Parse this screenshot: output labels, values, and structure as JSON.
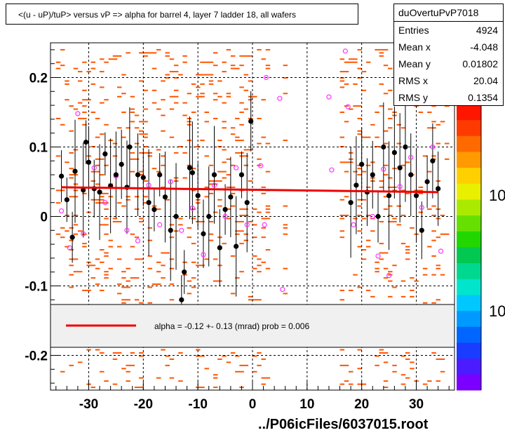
{
  "title": "<(u - uP)/tuP> versus   vP => alpha for barrel 4, layer 7 ladder 18, all wafers",
  "stats": {
    "name": "duOvertuPvP7018",
    "rows": [
      {
        "key": "Entries",
        "value": "4924"
      },
      {
        "key": "Mean x",
        "value": "-4.048"
      },
      {
        "key": "Mean y",
        "value": "0.01802"
      },
      {
        "key": "RMS x",
        "value": "20.04"
      },
      {
        "key": "RMS y",
        "value": "0.1354"
      }
    ]
  },
  "legend": {
    "text": "alpha =   -0.12 +-  0.13 (mrad) prob = 0.006",
    "line_color": "#ee0000"
  },
  "footer": "../P06icFiles/6037015.root",
  "palette_labels": [
    "10",
    "10"
  ],
  "colors": {
    "points": "#000000",
    "open_markers": "#ff33ff",
    "fit_line": "#ee0000",
    "hist_cells": "#ff5500",
    "grid": "#000000"
  },
  "chart_data": {
    "type": "scatter",
    "title": "<(u - uP)/tuP> versus   vP => alpha for barrel 4, layer 7 ladder 18, all wafers",
    "xlim": [
      -37,
      37
    ],
    "ylim": [
      -0.25,
      0.25
    ],
    "x_ticks": [
      -30,
      -20,
      -10,
      0,
      10,
      20,
      30
    ],
    "y_ticks": [
      0.2,
      0.1,
      0,
      -0.1,
      -0.2
    ],
    "x_tick_labels": [
      "-30",
      "-20",
      "-10",
      "0",
      "10",
      "20",
      "30"
    ],
    "y_tick_labels": [
      "0.2",
      "0.1",
      "0",
      "-0.1",
      "-0.2"
    ],
    "grid": true,
    "fit_line": {
      "x_start": -35,
      "y_start": 0.042,
      "x_end": 34,
      "y_end": 0.035
    },
    "profile_points": [
      {
        "x": -35,
        "y": 0.058
      },
      {
        "x": -34,
        "y": 0.024
      },
      {
        "x": -33,
        "y": -0.03
      },
      {
        "x": -32.5,
        "y": 0.065
      },
      {
        "x": -31,
        "y": 0.038
      },
      {
        "x": -30.5,
        "y": 0.107
      },
      {
        "x": -30,
        "y": 0.078
      },
      {
        "x": -29,
        "y": 0.04
      },
      {
        "x": -28,
        "y": 0.035
      },
      {
        "x": -27,
        "y": 0.09
      },
      {
        "x": -26,
        "y": 0.044
      },
      {
        "x": -25,
        "y": 0.06
      },
      {
        "x": -24,
        "y": 0.075
      },
      {
        "x": -23,
        "y": 0.042
      },
      {
        "x": -22.5,
        "y": 0.1
      },
      {
        "x": -21,
        "y": 0.06
      },
      {
        "x": -20,
        "y": 0.056
      },
      {
        "x": -19,
        "y": 0.02
      },
      {
        "x": -18,
        "y": 0.01
      },
      {
        "x": -17,
        "y": 0.06
      },
      {
        "x": -16,
        "y": 0.028
      },
      {
        "x": -15,
        "y": -0.02
      },
      {
        "x": -14,
        "y": 0.0
      },
      {
        "x": -13,
        "y": -0.12
      },
      {
        "x": -12.5,
        "y": -0.08
      },
      {
        "x": -11.5,
        "y": 0.07
      },
      {
        "x": -11,
        "y": 0.063
      },
      {
        "x": -10,
        "y": 0.03
      },
      {
        "x": -9,
        "y": -0.025
      },
      {
        "x": -8,
        "y": 0.0
      },
      {
        "x": -7,
        "y": 0.06
      },
      {
        "x": -6,
        "y": -0.045
      },
      {
        "x": -5,
        "y": 0.01
      },
      {
        "x": -4,
        "y": 0.028
      },
      {
        "x": -3,
        "y": -0.043
      },
      {
        "x": -2,
        "y": 0.06
      },
      {
        "x": -1,
        "y": 0.02
      },
      {
        "x": -0.3,
        "y": 0.137
      },
      {
        "x": 18,
        "y": 0.02
      },
      {
        "x": 19,
        "y": 0.045
      },
      {
        "x": 20,
        "y": 0.075
      },
      {
        "x": 21,
        "y": 0.035
      },
      {
        "x": 22,
        "y": 0.06
      },
      {
        "x": 23,
        "y": 0.0
      },
      {
        "x": 24,
        "y": 0.1
      },
      {
        "x": 25,
        "y": 0.03
      },
      {
        "x": 26,
        "y": 0.092
      },
      {
        "x": 27,
        "y": 0.07
      },
      {
        "x": 28,
        "y": 0.1
      },
      {
        "x": 29,
        "y": 0.06
      },
      {
        "x": 30,
        "y": 0.03
      },
      {
        "x": 31,
        "y": -0.02
      },
      {
        "x": 32,
        "y": 0.05
      },
      {
        "x": 33,
        "y": 0.08
      },
      {
        "x": 34,
        "y": 0.04
      }
    ],
    "open_markers": [
      {
        "x": -35,
        "y": 0.008
      },
      {
        "x": -33.5,
        "y": -0.045
      },
      {
        "x": -32,
        "y": 0.148
      },
      {
        "x": -31,
        "y": -0.025
      },
      {
        "x": -29,
        "y": 0.07
      },
      {
        "x": -27,
        "y": 0.02
      },
      {
        "x": -25,
        "y": 0.058
      },
      {
        "x": -23,
        "y": -0.02
      },
      {
        "x": -21,
        "y": -0.035
      },
      {
        "x": -19,
        "y": 0.045
      },
      {
        "x": -17,
        "y": -0.012
      },
      {
        "x": -15,
        "y": 0.05
      },
      {
        "x": -13,
        "y": -0.02
      },
      {
        "x": -11,
        "y": 0.012
      },
      {
        "x": -9,
        "y": -0.055
      },
      {
        "x": -7,
        "y": 0.045
      },
      {
        "x": -5,
        "y": 0.0
      },
      {
        "x": -3,
        "y": 0.07
      },
      {
        "x": -1,
        "y": -0.012
      },
      {
        "x": 1.5,
        "y": 0.073
      },
      {
        "x": 2.2,
        "y": -0.012
      },
      {
        "x": 2.5,
        "y": 0.2
      },
      {
        "x": 5,
        "y": 0.17
      },
      {
        "x": 5.5,
        "y": -0.105
      },
      {
        "x": 14,
        "y": 0.172
      },
      {
        "x": 14.5,
        "y": 0.067
      },
      {
        "x": 17,
        "y": 0.238
      },
      {
        "x": 17.5,
        "y": 0.158
      },
      {
        "x": 18.5,
        "y": -0.012
      },
      {
        "x": 20,
        "y": 0.075
      },
      {
        "x": 22,
        "y": 0.0
      },
      {
        "x": 23,
        "y": -0.057
      },
      {
        "x": 24,
        "y": 0.068
      },
      {
        "x": 25,
        "y": -0.085
      },
      {
        "x": 27,
        "y": 0.043
      },
      {
        "x": 29,
        "y": 0.085
      },
      {
        "x": 31,
        "y": 0.013
      },
      {
        "x": 33,
        "y": 0.1
      },
      {
        "x": 34.5,
        "y": -0.05
      }
    ]
  }
}
